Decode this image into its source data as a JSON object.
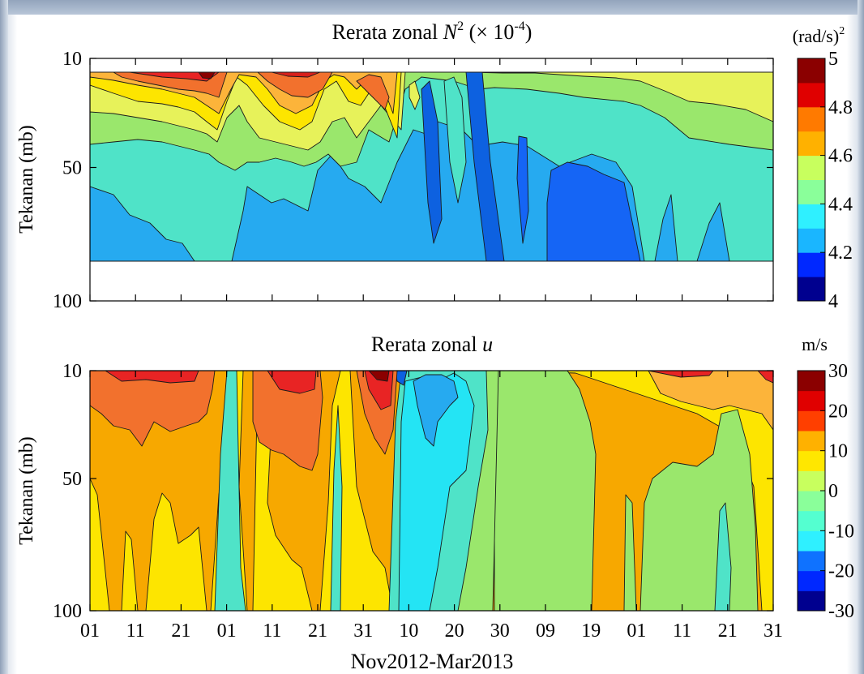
{
  "chart_data": [
    {
      "type": "heatmap",
      "subtype": "filled-contour",
      "title_prefix": "Rerata zonal ",
      "title_var": "N",
      "title_sup": "2",
      "title_mid": " (× 10",
      "title_exp": "-4",
      "title_end": ")",
      "xlabel": "",
      "ylabel": "Tekanan (mb)",
      "y_axis": {
        "scale": "pressure (inverted)",
        "ticks": [
          "10",
          "50",
          "100"
        ],
        "ylim": [
          100,
          10
        ]
      },
      "x_ticks": [
        "01",
        "11",
        "21",
        "01",
        "11",
        "21",
        "31",
        "10",
        "20",
        "30",
        "09",
        "19",
        "01",
        "11",
        "21",
        "31"
      ],
      "colorbar": {
        "unit_base": "(rad/s)",
        "unit_sup": "2",
        "ticks": [
          "5",
          "4.8",
          "4.6",
          "4.4",
          "4.2",
          "4"
        ],
        "levels": [
          4.0,
          4.1,
          4.2,
          4.3,
          4.4,
          4.5,
          4.6,
          4.7,
          4.8,
          4.9,
          5.0
        ]
      },
      "data_coverage": "approx. 15–75 mb; blank above and below",
      "pattern": [
        {
          "period": "early Nov",
          "value_range": [
            4.3,
            4.8
          ]
        },
        {
          "period": "early Dec",
          "value_range": [
            4.2,
            4.4
          ]
        },
        {
          "period": "mid Dec",
          "value_range": [
            4.3,
            4.8
          ]
        },
        {
          "period": "late Dec",
          "value_range": [
            4.2,
            4.7
          ]
        },
        {
          "period": "Jan–Feb",
          "value_range": [
            4.1,
            4.4
          ]
        },
        {
          "period": "Mar",
          "value_range": [
            4.3,
            4.5
          ]
        }
      ]
    },
    {
      "type": "heatmap",
      "subtype": "filled-contour",
      "title_prefix": "Rerata zonal ",
      "title_var": "u",
      "xlabel": "Nov2012-Mar2013",
      "ylabel": "Tekanan (mb)",
      "y_axis": {
        "scale": "pressure (inverted)",
        "ticks": [
          "10",
          "50",
          "100"
        ],
        "ylim": [
          100,
          10
        ]
      },
      "x_ticks": [
        "01",
        "11",
        "21",
        "01",
        "11",
        "21",
        "31",
        "10",
        "20",
        "30",
        "09",
        "19",
        "01",
        "11",
        "21",
        "31"
      ],
      "colorbar": {
        "unit": "m/s",
        "ticks": [
          "30",
          "20",
          "10",
          "0",
          "-10",
          "-20",
          "-30"
        ],
        "levels": [
          -30,
          -25,
          -20,
          -15,
          -10,
          -5,
          0,
          5,
          10,
          15,
          20,
          25,
          30
        ]
      },
      "pattern": [
        {
          "period": "Nov",
          "value_range": [
            0,
            25
          ]
        },
        {
          "period": "early Dec",
          "value_range": [
            -5,
            5
          ]
        },
        {
          "period": "Dec",
          "value_range": [
            0,
            20
          ]
        },
        {
          "period": "early Jan",
          "value_range": [
            -20,
            0
          ]
        },
        {
          "period": "Feb",
          "value_range": [
            -5,
            0
          ]
        },
        {
          "period": "Mar",
          "value_range": [
            -5,
            25
          ]
        }
      ]
    }
  ]
}
